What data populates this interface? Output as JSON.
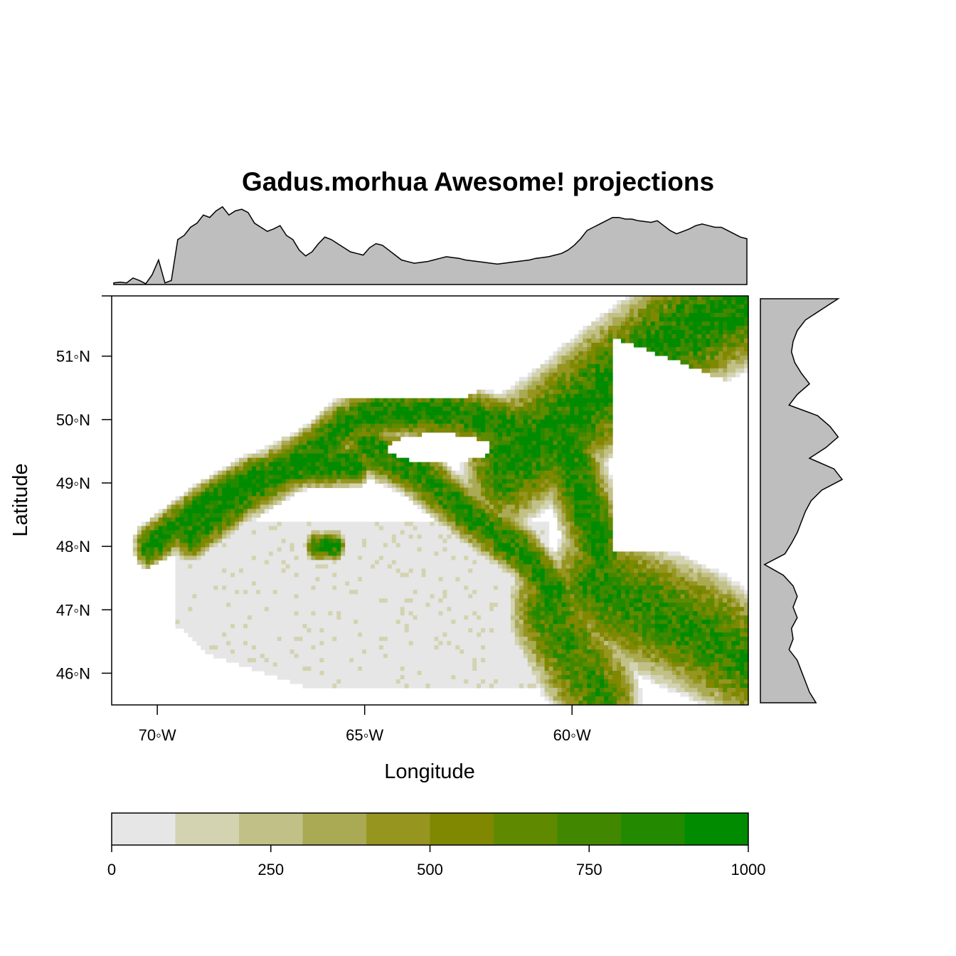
{
  "chart_data": {
    "type": "heatmap",
    "title": "Gadus.morhua Awesome! projections",
    "xlabel": "Longitude",
    "ylabel": "Latitude",
    "xlim": [
      -71.1,
      -55.75
    ],
    "ylim": [
      45.5,
      51.95
    ],
    "x_ticks": [
      {
        "value": -70,
        "label": "70◦W"
      },
      {
        "value": -65,
        "label": "65◦W"
      },
      {
        "value": -60,
        "label": "60◦W"
      }
    ],
    "y_ticks": [
      {
        "value": 46,
        "label": "46◦N"
      },
      {
        "value": 47,
        "label": "47◦N"
      },
      {
        "value": 48,
        "label": "48◦N"
      },
      {
        "value": 49,
        "label": "49◦N"
      },
      {
        "value": 50,
        "label": "50◦N"
      },
      {
        "value": 51,
        "label": "51◦N"
      }
    ],
    "colorkey": {
      "breaks": [
        0,
        100,
        200,
        300,
        400,
        500,
        600,
        700,
        800,
        900,
        1000
      ],
      "colors": [
        "#e6e6e6",
        "#d3d3b1",
        "#c1c087",
        "#aaaa55",
        "#959520",
        "#7f8800",
        "#5f8a00",
        "#418800",
        "#238a00",
        "#008b00"
      ],
      "tick_labels": [
        "0",
        "250",
        "500",
        "750",
        "1000"
      ],
      "tick_values": [
        0,
        250,
        500,
        750,
        1000
      ]
    },
    "top_marginal_profile": [
      0.02,
      0.03,
      0.02,
      0.08,
      0.05,
      0.01,
      0.12,
      0.3,
      0.02,
      0.05,
      0.55,
      0.6,
      0.7,
      0.75,
      0.85,
      0.82,
      0.9,
      0.95,
      0.85,
      0.9,
      0.92,
      0.88,
      0.75,
      0.7,
      0.65,
      0.68,
      0.72,
      0.6,
      0.55,
      0.42,
      0.35,
      0.4,
      0.5,
      0.58,
      0.55,
      0.5,
      0.45,
      0.4,
      0.38,
      0.36,
      0.45,
      0.5,
      0.48,
      0.42,
      0.36,
      0.3,
      0.28,
      0.26,
      0.27,
      0.28,
      0.3,
      0.32,
      0.34,
      0.33,
      0.32,
      0.3,
      0.29,
      0.28,
      0.27,
      0.26,
      0.25,
      0.26,
      0.27,
      0.28,
      0.29,
      0.3,
      0.32,
      0.33,
      0.34,
      0.36,
      0.38,
      0.42,
      0.48,
      0.56,
      0.66,
      0.7,
      0.74,
      0.78,
      0.82,
      0.82,
      0.8,
      0.8,
      0.78,
      0.77,
      0.76,
      0.78,
      0.72,
      0.66,
      0.62,
      0.65,
      0.68,
      0.72,
      0.74,
      0.72,
      0.7,
      0.7,
      0.66,
      0.62,
      0.58,
      0.56
    ],
    "right_marginal_profile": [
      0.95,
      0.75,
      0.55,
      0.45,
      0.4,
      0.38,
      0.42,
      0.5,
      0.6,
      0.45,
      0.35,
      0.7,
      0.85,
      0.95,
      0.8,
      0.6,
      0.9,
      1.0,
      0.75,
      0.62,
      0.55,
      0.5,
      0.45,
      0.38,
      0.3,
      0.05,
      0.28,
      0.4,
      0.45,
      0.4,
      0.45,
      0.38,
      0.4,
      0.35,
      0.45,
      0.5,
      0.55,
      0.6,
      0.68
    ]
  }
}
